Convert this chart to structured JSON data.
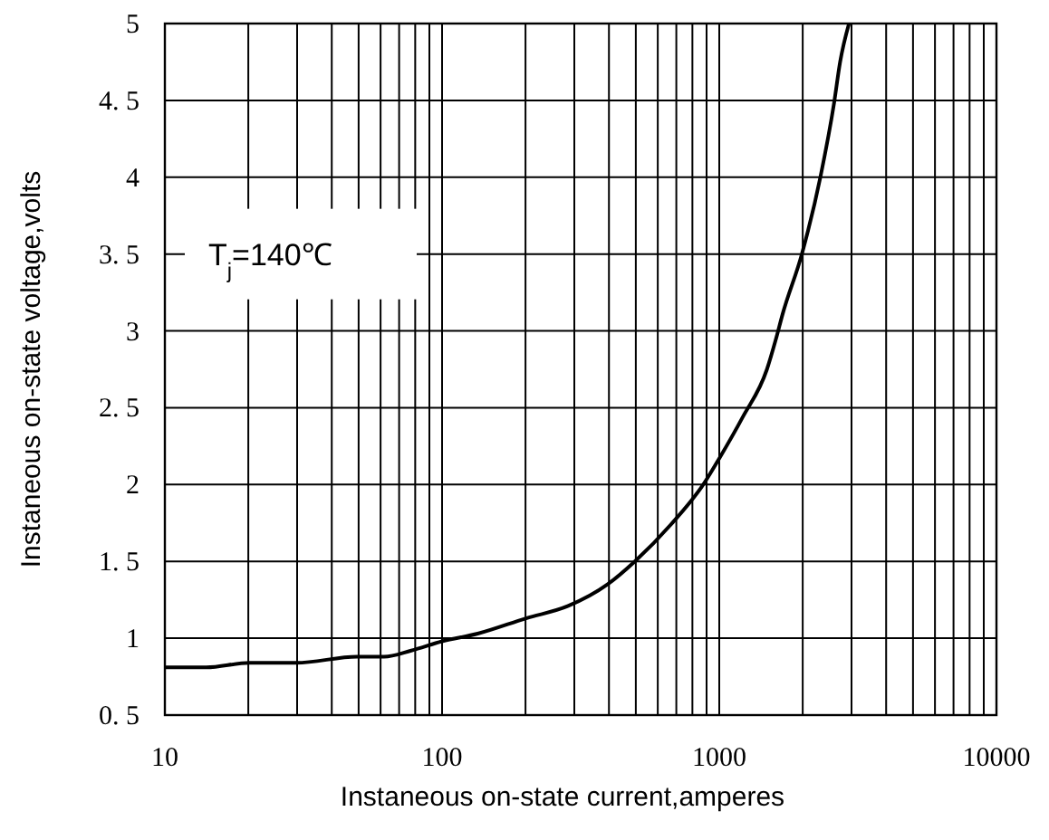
{
  "chart_data": {
    "type": "line",
    "xlabel": "Instaneous on-state current,amperes",
    "ylabel": "Instaneous on-state voltage,volts",
    "log": "x",
    "grid": true,
    "marker": "none",
    "line_style": "solid",
    "xlim": [
      10,
      10000
    ],
    "xticks": [
      10,
      100,
      1000,
      10000
    ],
    "ylim": [
      0.5,
      5
    ],
    "yticks": [
      {
        "value": 0.5,
        "label": "0. 5"
      },
      1,
      {
        "value": 1.5,
        "label": "1. 5"
      },
      2,
      {
        "value": 2.5,
        "label": "2. 5"
      },
      3,
      {
        "value": 3.5,
        "label": "3. 5"
      },
      4,
      {
        "value": 4.5,
        "label": "4. 5"
      },
      5
    ],
    "annotations": [
      "T$_{j}$=140℃"
    ],
    "series": [
      {
        "color": "#000000",
        "x": [
          10,
          14.1,
          20.2,
          29.8,
          49.3,
          61.8,
          77.4,
          100,
          134.5,
          201,
          285,
          395,
          496,
          669,
          883,
          1000,
          1216,
          1486,
          1603,
          1693,
          1986,
          2322,
          2594,
          2729,
          2938
        ],
        "values": [
          0.81,
          0.81,
          0.84,
          0.84,
          0.88,
          0.88,
          0.92,
          0.98,
          1.03,
          1.13,
          1.21,
          1.35,
          1.5,
          1.74,
          2.01,
          2.17,
          2.44,
          2.75,
          2.95,
          3.11,
          3.5,
          4.01,
          4.48,
          4.75,
          5.0
        ]
      }
    ]
  }
}
